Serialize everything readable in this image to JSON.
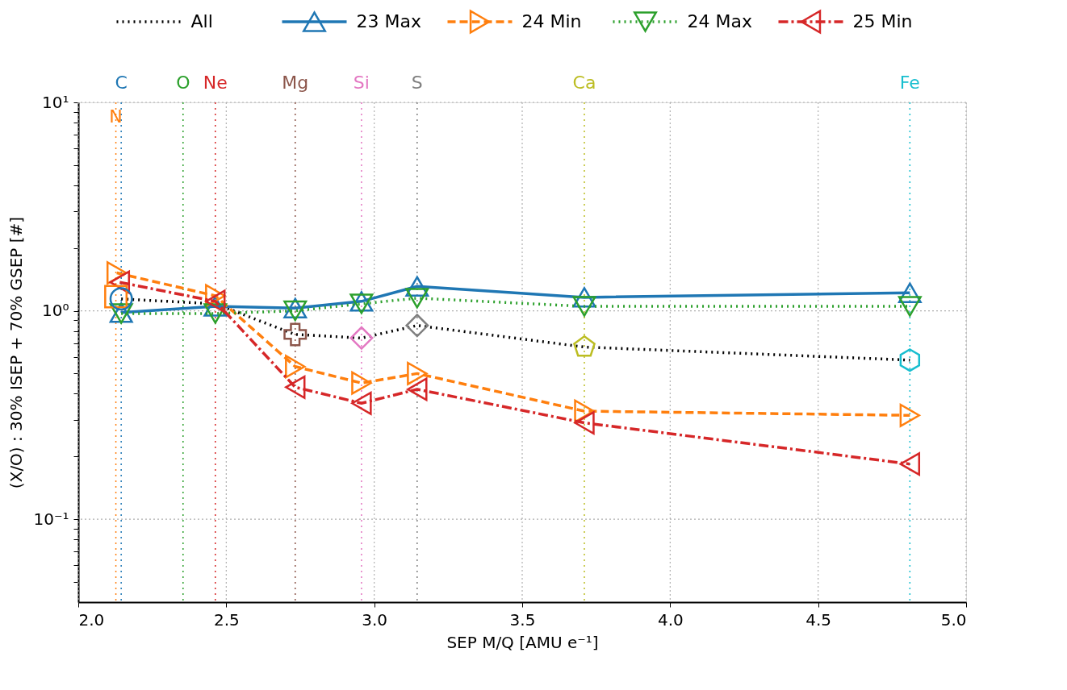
{
  "chart_data": {
    "type": "line",
    "xlabel": "SEP M/Q [AMU e⁻¹]",
    "ylabel": "(X/O) : 30% ISEP + 70% GSEP [#]",
    "log": "y",
    "grid": true,
    "legend": "top",
    "xlim": [
      2.0,
      5.0
    ],
    "xticks": [
      {
        "value": 2.0,
        "label": "2.0"
      },
      {
        "value": 2.5,
        "label": "2.5"
      },
      {
        "value": 3.0,
        "label": "3.0"
      },
      {
        "value": 3.5,
        "label": "3.5"
      },
      {
        "value": 4.0,
        "label": "4.0"
      },
      {
        "value": 4.5,
        "label": "4.5"
      },
      {
        "value": 5.0,
        "label": "5.0"
      }
    ],
    "ylim": [
      0.04,
      10
    ],
    "yticks": [
      {
        "value": 0.05,
        "label": null
      },
      {
        "value": 0.06,
        "label": null
      },
      {
        "value": 0.07,
        "label": null
      },
      {
        "value": 0.08,
        "label": null
      },
      {
        "value": 0.09,
        "label": null
      },
      {
        "value": 0.1,
        "label": "10⁻¹"
      },
      {
        "value": 0.2,
        "label": null
      },
      {
        "value": 0.3,
        "label": null
      },
      {
        "value": 0.4,
        "label": null
      },
      {
        "value": 0.5,
        "label": null
      },
      {
        "value": 0.6,
        "label": null
      },
      {
        "value": 0.7,
        "label": null
      },
      {
        "value": 0.8,
        "label": null
      },
      {
        "value": 0.9,
        "label": null
      },
      {
        "value": 1,
        "label": "10⁰"
      },
      {
        "value": 2,
        "label": null
      },
      {
        "value": 3,
        "label": null
      },
      {
        "value": 4,
        "label": null
      },
      {
        "value": 5,
        "label": null
      },
      {
        "value": 6,
        "label": null
      },
      {
        "value": 7,
        "label": null
      },
      {
        "value": 8,
        "label": null
      },
      {
        "value": 9,
        "label": null
      },
      {
        "value": 10,
        "label": "10¹"
      }
    ],
    "series": [
      {
        "name": "All",
        "color": "#000000",
        "line_style": "dotted",
        "marker": "none",
        "x": [
          2.145,
          2.463,
          2.733,
          2.957,
          3.145,
          3.71,
          4.81
        ],
        "values": [
          1.14,
          1.08,
          0.77,
          0.74,
          0.85,
          0.67,
          0.58
        ]
      },
      {
        "name": "23 Max",
        "color": "#1f77b4",
        "line_style": "solid",
        "marker": "triangle-up",
        "x": [
          2.145,
          2.463,
          2.733,
          2.957,
          3.145,
          3.71,
          4.81
        ],
        "values": [
          0.98,
          1.05,
          1.03,
          1.11,
          1.31,
          1.16,
          1.22
        ]
      },
      {
        "name": "24 Min",
        "color": "#ff7f0e",
        "line_style": "dashed",
        "marker": "triangle-right",
        "x": [
          2.13,
          2.463,
          2.733,
          2.957,
          3.145,
          3.71,
          4.81
        ],
        "values": [
          1.52,
          1.18,
          0.54,
          0.45,
          0.5,
          0.33,
          0.315
        ]
      },
      {
        "name": "24 Max",
        "color": "#2ca02c",
        "line_style": "dotted",
        "marker": "triangle-down",
        "x": [
          2.145,
          2.463,
          2.733,
          2.957,
          3.145,
          3.71,
          4.81
        ],
        "values": [
          0.97,
          0.97,
          1.0,
          1.08,
          1.15,
          1.05,
          1.05
        ]
      },
      {
        "name": "25 Min",
        "color": "#d62728",
        "line_style": "dashdot",
        "marker": "triangle-left",
        "x": [
          2.14,
          2.463,
          2.733,
          2.957,
          3.145,
          3.71,
          4.81
        ],
        "values": [
          1.37,
          1.11,
          0.43,
          0.36,
          0.42,
          0.29,
          0.184
        ]
      },
      {
        "type": "scatter",
        "marker": [
          "square",
          "circle",
          "cross",
          "diamond",
          "diamond",
          "pentagon",
          "hexagon"
        ],
        "colors": [
          "#ff7f0e",
          "#1f77b4",
          "#8c564b",
          "#e377c2",
          "#7f7f7f",
          "#bcbd22",
          "#17becf"
        ],
        "x": [
          2.127,
          2.145,
          2.733,
          2.957,
          3.145,
          3.71,
          4.81
        ],
        "values": [
          1.17,
          1.14,
          0.77,
          0.74,
          0.85,
          0.67,
          0.58
        ]
      }
    ],
    "ref_lines": [
      {
        "axis": "x",
        "value": 2.145,
        "label": "C",
        "color": "#1f77b4",
        "line_style": "dotted"
      },
      {
        "axis": "x",
        "value": 2.127,
        "label": "N",
        "color": "#ff7f0e",
        "line_style": "dotted"
      },
      {
        "axis": "x",
        "value": 2.354,
        "label": "O",
        "color": "#2ca02c",
        "line_style": "dotted"
      },
      {
        "axis": "x",
        "value": 2.463,
        "label": "Ne",
        "color": "#d62728",
        "line_style": "dotted"
      },
      {
        "axis": "x",
        "value": 2.733,
        "label": "Mg",
        "color": "#8c564b",
        "line_style": "dotted"
      },
      {
        "axis": "x",
        "value": 2.957,
        "label": "Si",
        "color": "#e377c2",
        "line_style": "dotted"
      },
      {
        "axis": "x",
        "value": 3.145,
        "label": "S",
        "color": "#7f7f7f",
        "line_style": "dotted"
      },
      {
        "axis": "x",
        "value": 3.71,
        "label": "Ca",
        "color": "#bcbd22",
        "line_style": "dotted"
      },
      {
        "axis": "x",
        "value": 4.81,
        "label": "Fe",
        "color": "#17becf",
        "line_style": "dotted"
      }
    ]
  }
}
